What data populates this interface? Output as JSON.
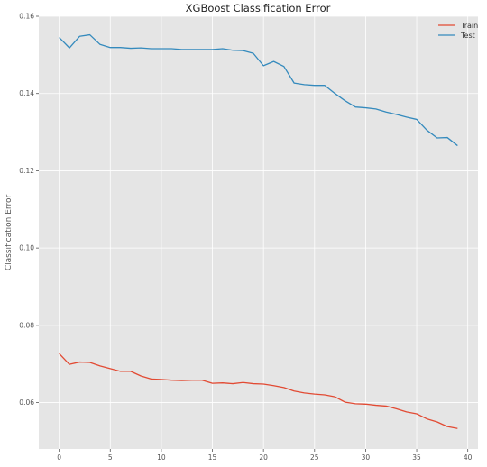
{
  "chart_data": {
    "type": "line",
    "title": "XGBoost Classification Error",
    "xlabel": "",
    "ylabel": "Classification Error",
    "xlim": [
      -2,
      41
    ],
    "ylim": [
      0.048,
      0.16
    ],
    "x_ticks": [
      0,
      5,
      10,
      15,
      20,
      25,
      30,
      35,
      40
    ],
    "y_ticks": [
      0.06,
      0.08,
      0.1,
      0.12,
      0.14,
      0.16
    ],
    "y_tick_labels": [
      "0.06",
      "0.08",
      "0.10",
      "0.12",
      "0.14",
      "0.16"
    ],
    "grid": true,
    "legend_position": "top-right",
    "background": "#e5e5e5",
    "x": [
      0,
      1,
      2,
      3,
      4,
      5,
      6,
      7,
      8,
      9,
      10,
      11,
      12,
      13,
      14,
      15,
      16,
      17,
      18,
      19,
      20,
      21,
      22,
      23,
      24,
      25,
      26,
      27,
      28,
      29,
      30,
      31,
      32,
      33,
      34,
      35,
      36,
      37,
      38,
      39
    ],
    "series": [
      {
        "name": "Train",
        "color": "#e24a33",
        "values": [
          0.0727,
          0.0699,
          0.0705,
          0.0704,
          0.0695,
          0.0688,
          0.0681,
          0.0681,
          0.0669,
          0.0661,
          0.066,
          0.0658,
          0.0657,
          0.0658,
          0.0658,
          0.065,
          0.0651,
          0.0649,
          0.0652,
          0.0649,
          0.0648,
          0.0644,
          0.0639,
          0.063,
          0.0625,
          0.0622,
          0.062,
          0.0615,
          0.0601,
          0.0597,
          0.0596,
          0.0593,
          0.0591,
          0.0584,
          0.0576,
          0.0571,
          0.0558,
          0.055,
          0.0538,
          0.0533
        ]
      },
      {
        "name": "Test",
        "color": "#348abd",
        "values": [
          0.1545,
          0.1518,
          0.1548,
          0.1552,
          0.1527,
          0.1519,
          0.1519,
          0.1517,
          0.1518,
          0.1516,
          0.1516,
          0.1516,
          0.1514,
          0.1514,
          0.1514,
          0.1514,
          0.1516,
          0.1512,
          0.1511,
          0.1504,
          0.1472,
          0.1483,
          0.147,
          0.1427,
          0.1423,
          0.1421,
          0.1421,
          0.14,
          0.1381,
          0.1365,
          0.1363,
          0.136,
          0.1352,
          0.1346,
          0.1339,
          0.1333,
          0.1305,
          0.1285,
          0.1286,
          0.1265
        ]
      }
    ]
  }
}
